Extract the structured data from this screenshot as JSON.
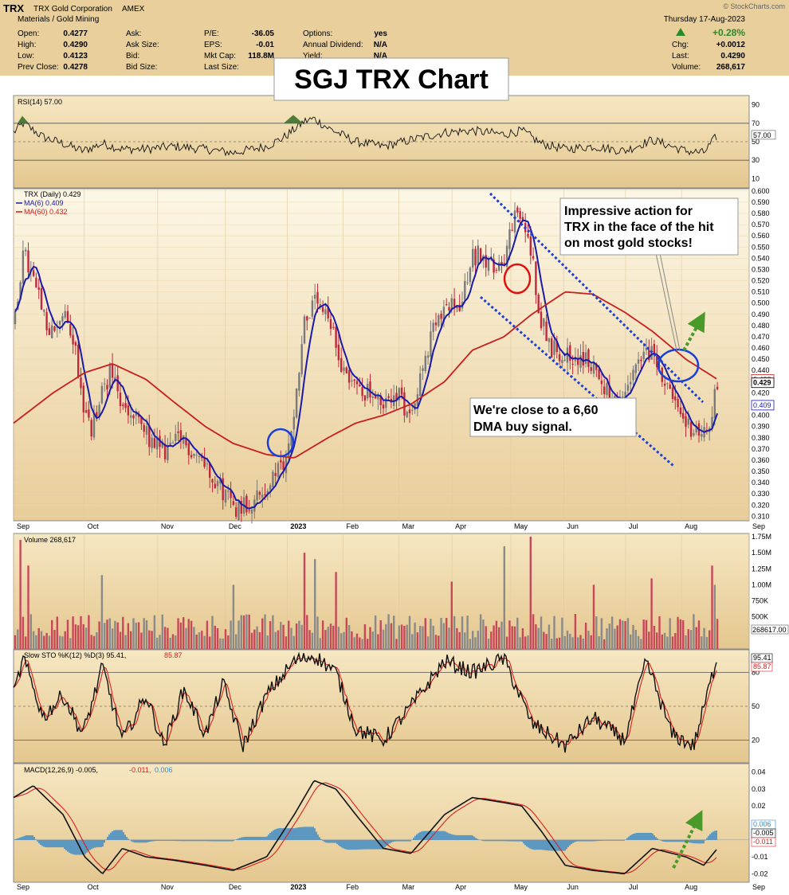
{
  "header": {
    "symbol": "TRX",
    "company": "TRX Gold Corporation",
    "exchange": "AMEX",
    "sector": "Materials / Gold Mining",
    "date": "Thursday  17-Aug-2023",
    "change_pct": "+0.28%",
    "quote_cols": [
      [
        [
          "Open:",
          "0.4277"
        ],
        [
          "High:",
          "0.4290"
        ],
        [
          "Low:",
          "0.4123"
        ],
        [
          "Prev Close:",
          "0.4278"
        ]
      ],
      [
        [
          "Ask:",
          ""
        ],
        [
          "Ask Size:",
          ""
        ],
        [
          "Bid:",
          ""
        ],
        [
          "Bid Size:",
          ""
        ]
      ],
      [
        [
          "P/E:",
          "-36.05"
        ],
        [
          "EPS:",
          "-0.01"
        ],
        [
          "Mkt Cap:",
          "118.8M"
        ],
        [
          "Last Size:",
          ""
        ]
      ],
      [
        [
          "Options:",
          "yes"
        ],
        [
          "Annual Dividend:",
          "N/A"
        ],
        [
          "Yield:",
          "N/A"
        ],
        [
          "",
          ""
        ]
      ],
      [
        [
          "Chg:",
          "+0.0012"
        ],
        [
          "Last:",
          "0.4290"
        ],
        [
          "Volume:",
          "268,617"
        ],
        [
          "",
          ""
        ]
      ]
    ],
    "watermark": "© StockCharts.com"
  },
  "overlay_title": "SGJ TRX Chart",
  "annotations": {
    "top_right": [
      "Impressive action for",
      "TRX in the face of the hit",
      "on most gold stocks!"
    ],
    "bottom": [
      "We're close to a 6,60",
      "DMA buy signal."
    ]
  },
  "legend": {
    "rsi": "RSI(14) 57.00",
    "price": "TRX (Daily) 0.429",
    "ma6": "MA(6) 0.409",
    "ma60": "MA(60) 0.432",
    "volume": "Volume 268,617",
    "sto_prefix": "Slow STO %K(12) %D(3) 95.41,",
    "sto_d": "85.87",
    "macd_prefix": "MACD(12,26,9) -0.005,",
    "macd_signal": "-0.011,",
    "macd_hist": "0.006"
  },
  "colors": {
    "panel_bg_top": "#fdf6e3",
    "panel_bg_bottom": "#e9cf9a",
    "header_bg": "#e8cf9b",
    "up_candle": "#7a7a7a",
    "down_candle": "#c0283c",
    "ma6": "#1a1aa8",
    "ma60": "#c81e1e",
    "annotation_blue": "#1a3fd9",
    "annotation_red": "#e01010",
    "arrow_green": "#4a9a2a",
    "macd_hist": "#3a8ac8"
  },
  "chart_data": {
    "type": "candlestick",
    "x_axis": {
      "months": [
        "Sep",
        "Oct",
        "Nov",
        "Dec",
        "2023",
        "Feb",
        "Mar",
        "Apr",
        "May",
        "Jun",
        "Jul",
        "Aug",
        "Sep"
      ],
      "month_index": [
        0,
        0.12,
        0.245,
        0.36,
        0.465,
        0.56,
        0.655,
        0.745,
        0.845,
        0.935,
        1.04,
        1.135,
        1.25
      ]
    },
    "price": {
      "y_ticks": [
        "0.600",
        "0.590",
        "0.580",
        "0.570",
        "0.560",
        "0.550",
        "0.540",
        "0.530",
        "0.520",
        "0.510",
        "0.500",
        "0.490",
        "0.480",
        "0.470",
        "0.460",
        "0.450",
        "0.440",
        "0.430",
        "0.420",
        "0.410",
        "0.400",
        "0.390",
        "0.380",
        "0.370",
        "0.360",
        "0.350",
        "0.340",
        "0.330",
        "0.320",
        "0.310"
      ],
      "ylim": [
        0.306,
        0.602
      ],
      "last_label": "0.429",
      "ma6_label": "0.409",
      "ma60_label": "0.432",
      "path": [
        [
          "2022-08-26",
          0.48
        ],
        [
          "2022-08-31",
          0.545
        ],
        [
          "2022-09-06",
          0.515
        ],
        [
          "2022-09-13",
          0.47
        ],
        [
          "2022-09-20",
          0.49
        ],
        [
          "2022-09-26",
          0.465
        ],
        [
          "2022-09-30",
          0.41
        ],
        [
          "2022-10-04",
          0.385
        ],
        [
          "2022-10-10",
          0.42
        ],
        [
          "2022-10-14",
          0.44
        ],
        [
          "2022-10-20",
          0.405
        ],
        [
          "2022-10-28",
          0.395
        ],
        [
          "2022-11-04",
          0.375
        ],
        [
          "2022-11-11",
          0.368
        ],
        [
          "2022-11-18",
          0.378
        ],
        [
          "2022-11-25",
          0.368
        ],
        [
          "2022-12-02",
          0.355
        ],
        [
          "2022-12-09",
          0.335
        ],
        [
          "2022-12-16",
          0.318
        ],
        [
          "2022-12-23",
          0.322
        ],
        [
          "2022-12-30",
          0.33
        ],
        [
          "2023-01-06",
          0.348
        ],
        [
          "2023-01-11",
          0.36
        ],
        [
          "2023-01-16",
          0.42
        ],
        [
          "2023-01-20",
          0.485
        ],
        [
          "2023-01-26",
          0.5
        ],
        [
          "2023-02-02",
          0.48
        ],
        [
          "2023-02-08",
          0.445
        ],
        [
          "2023-02-15",
          0.425
        ],
        [
          "2023-02-22",
          0.42
        ],
        [
          "2023-03-01",
          0.405
        ],
        [
          "2023-03-07",
          0.425
        ],
        [
          "2023-03-13",
          0.4
        ],
        [
          "2023-03-20",
          0.435
        ],
        [
          "2023-03-27",
          0.48
        ],
        [
          "2023-04-03",
          0.495
        ],
        [
          "2023-04-10",
          0.5
        ],
        [
          "2023-04-14",
          0.54
        ],
        [
          "2023-04-20",
          0.545
        ],
        [
          "2023-04-26",
          0.53
        ],
        [
          "2023-05-02",
          0.545
        ],
        [
          "2023-05-06",
          0.575
        ],
        [
          "2023-05-10",
          0.575
        ],
        [
          "2023-05-15",
          0.545
        ],
        [
          "2023-05-19",
          0.49
        ],
        [
          "2023-05-25",
          0.46
        ],
        [
          "2023-06-01",
          0.455
        ],
        [
          "2023-06-08",
          0.45
        ],
        [
          "2023-06-15",
          0.445
        ],
        [
          "2023-06-22",
          0.42
        ],
        [
          "2023-06-29",
          0.405
        ],
        [
          "2023-07-06",
          0.44
        ],
        [
          "2023-07-12",
          0.455
        ],
        [
          "2023-07-18",
          0.45
        ],
        [
          "2023-07-24",
          0.415
        ],
        [
          "2023-07-31",
          0.395
        ],
        [
          "2023-08-07",
          0.385
        ],
        [
          "2023-08-11",
          0.38
        ],
        [
          "2023-08-14",
          0.4
        ],
        [
          "2023-08-17",
          0.429
        ]
      ]
    },
    "ma60": [
      [
        "2022-08-26",
        0.393
      ],
      [
        "2022-09-15",
        0.42
      ],
      [
        "2022-10-01",
        0.438
      ],
      [
        "2022-10-15",
        0.446
      ],
      [
        "2022-11-01",
        0.432
      ],
      [
        "2022-11-15",
        0.412
      ],
      [
        "2022-12-01",
        0.39
      ],
      [
        "2022-12-15",
        0.375
      ],
      [
        "2023-01-01",
        0.365
      ],
      [
        "2023-01-15",
        0.362
      ],
      [
        "2023-02-01",
        0.38
      ],
      [
        "2023-02-15",
        0.393
      ],
      [
        "2023-03-01",
        0.4
      ],
      [
        "2023-03-15",
        0.41
      ],
      [
        "2023-04-01",
        0.43
      ],
      [
        "2023-04-15",
        0.458
      ],
      [
        "2023-05-01",
        0.47
      ],
      [
        "2023-05-15",
        0.49
      ],
      [
        "2023-06-01",
        0.51
      ],
      [
        "2023-06-15",
        0.508
      ],
      [
        "2023-07-01",
        0.492
      ],
      [
        "2023-07-15",
        0.475
      ],
      [
        "2023-08-01",
        0.45
      ],
      [
        "2023-08-17",
        0.432
      ]
    ],
    "rsi": {
      "y_ticks": [
        90,
        70,
        50,
        30,
        10
      ],
      "ylim": [
        0,
        100
      ],
      "last": 57.0,
      "path": [
        [
          "2022-08-26",
          60
        ],
        [
          "2022-08-31",
          70
        ],
        [
          "2022-09-10",
          55
        ],
        [
          "2022-09-20",
          48
        ],
        [
          "2022-09-30",
          40
        ],
        [
          "2022-10-10",
          48
        ],
        [
          "2022-10-20",
          42
        ],
        [
          "2022-11-01",
          42
        ],
        [
          "2022-11-15",
          45
        ],
        [
          "2022-12-01",
          42
        ],
        [
          "2022-12-15",
          38
        ],
        [
          "2023-01-01",
          45
        ],
        [
          "2023-01-10",
          55
        ],
        [
          "2023-01-20",
          72
        ],
        [
          "2023-01-25",
          75
        ],
        [
          "2023-02-01",
          65
        ],
        [
          "2023-02-15",
          50
        ],
        [
          "2023-03-01",
          45
        ],
        [
          "2023-03-15",
          52
        ],
        [
          "2023-04-01",
          60
        ],
        [
          "2023-04-15",
          62
        ],
        [
          "2023-05-01",
          58
        ],
        [
          "2023-05-10",
          62
        ],
        [
          "2023-05-20",
          48
        ],
        [
          "2023-06-01",
          42
        ],
        [
          "2023-06-15",
          45
        ],
        [
          "2023-07-01",
          40
        ],
        [
          "2023-07-15",
          52
        ],
        [
          "2023-08-01",
          40
        ],
        [
          "2023-08-10",
          38
        ],
        [
          "2023-08-17",
          57
        ]
      ]
    },
    "volume": {
      "y_ticks": [
        "1.75M",
        "1.50M",
        "1.25M",
        "1.00M",
        "750K",
        "500K"
      ],
      "ylim": [
        0,
        1800000
      ],
      "last_label": "268617.00",
      "spikes": [
        [
          "2022-08-29",
          1700000
        ],
        [
          "2022-09-02",
          1300000
        ],
        [
          "2022-10-10",
          1150000
        ],
        [
          "2022-12-15",
          1000000
        ],
        [
          "2023-01-20",
          1500000
        ],
        [
          "2023-01-25",
          1400000
        ],
        [
          "2023-02-05",
          1200000
        ],
        [
          "2023-04-05",
          1050000
        ],
        [
          "2023-05-01",
          1600000
        ],
        [
          "2023-05-15",
          1750000
        ],
        [
          "2023-06-15",
          1000000
        ],
        [
          "2023-07-15",
          1100000
        ],
        [
          "2023-08-14",
          1300000
        ],
        [
          "2023-08-16",
          1000000
        ]
      ]
    },
    "stochastic": {
      "y_ticks": [
        80,
        50,
        20
      ],
      "ylim": [
        0,
        100
      ],
      "k_last": 95.41,
      "d_last": 85.87,
      "path": [
        [
          "2022-08-26",
          60
        ],
        [
          "2022-08-31",
          92
        ],
        [
          "2022-09-10",
          40
        ],
        [
          "2022-09-20",
          60
        ],
        [
          "2022-09-30",
          25
        ],
        [
          "2022-10-10",
          85
        ],
        [
          "2022-10-20",
          20
        ],
        [
          "2022-11-01",
          60
        ],
        [
          "2022-11-10",
          15
        ],
        [
          "2022-11-20",
          65
        ],
        [
          "2022-12-01",
          25
        ],
        [
          "2022-12-10",
          70
        ],
        [
          "2022-12-20",
          15
        ],
        [
          "2023-01-01",
          60
        ],
        [
          "2023-01-15",
          90
        ],
        [
          "2023-01-25",
          95
        ],
        [
          "2023-02-05",
          80
        ],
        [
          "2023-02-15",
          30
        ],
        [
          "2023-03-01",
          20
        ],
        [
          "2023-03-15",
          50
        ],
        [
          "2023-04-01",
          90
        ],
        [
          "2023-04-15",
          80
        ],
        [
          "2023-05-01",
          92
        ],
        [
          "2023-05-15",
          35
        ],
        [
          "2023-06-01",
          15
        ],
        [
          "2023-06-15",
          40
        ],
        [
          "2023-07-01",
          20
        ],
        [
          "2023-07-12",
          90
        ],
        [
          "2023-07-25",
          25
        ],
        [
          "2023-08-05",
          15
        ],
        [
          "2023-08-17",
          95
        ]
      ]
    },
    "macd": {
      "y_ticks": [
        "0.04",
        "0.03",
        "0.02",
        "0.01",
        "0.00",
        "-0.01",
        "-0.02"
      ],
      "ylim": [
        -0.025,
        0.045
      ],
      "macd_last": -0.005,
      "signal_last": -0.011,
      "hist_last": 0.006,
      "path": [
        [
          "2022-08-26",
          0.025
        ],
        [
          "2022-09-05",
          0.032
        ],
        [
          "2022-09-20",
          0.015
        ],
        [
          "2022-10-01",
          -0.01
        ],
        [
          "2022-10-10",
          -0.02
        ],
        [
          "2022-10-20",
          -0.005
        ],
        [
          "2022-11-01",
          -0.01
        ],
        [
          "2022-11-15",
          -0.012
        ],
        [
          "2022-12-01",
          -0.015
        ],
        [
          "2022-12-15",
          -0.018
        ],
        [
          "2023-01-01",
          -0.01
        ],
        [
          "2023-01-15",
          0.015
        ],
        [
          "2023-01-25",
          0.035
        ],
        [
          "2023-02-05",
          0.03
        ],
        [
          "2023-02-15",
          0.015
        ],
        [
          "2023-03-01",
          -0.005
        ],
        [
          "2023-03-15",
          -0.008
        ],
        [
          "2023-04-01",
          0.015
        ],
        [
          "2023-04-15",
          0.025
        ],
        [
          "2023-05-01",
          0.022
        ],
        [
          "2023-05-10",
          0.02
        ],
        [
          "2023-05-20",
          0.005
        ],
        [
          "2023-06-01",
          -0.015
        ],
        [
          "2023-06-15",
          -0.018
        ],
        [
          "2023-07-01",
          -0.02
        ],
        [
          "2023-07-15",
          -0.005
        ],
        [
          "2023-08-01",
          -0.01
        ],
        [
          "2023-08-10",
          -0.015
        ],
        [
          "2023-08-17",
          -0.005
        ]
      ]
    }
  }
}
